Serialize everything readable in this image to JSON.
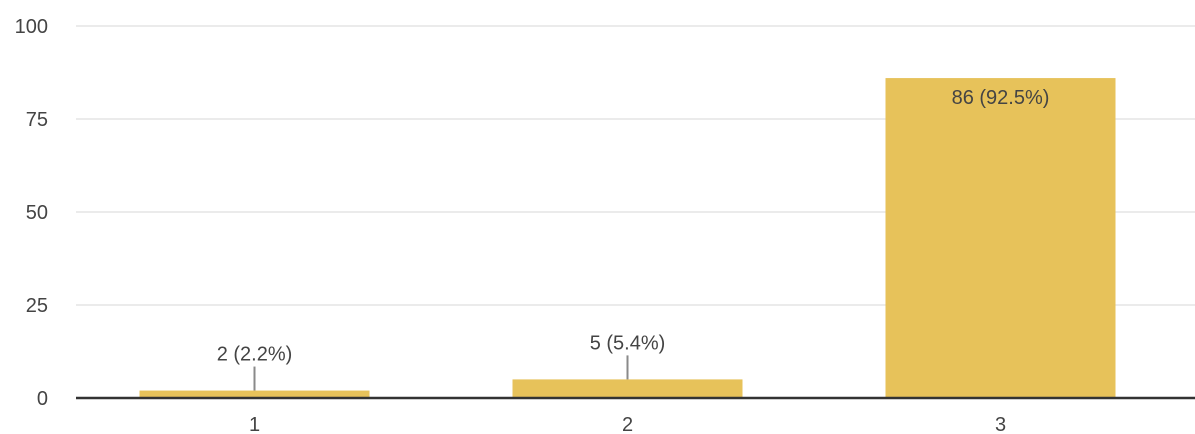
{
  "chart_data": {
    "type": "bar",
    "categories": [
      "1",
      "2",
      "3"
    ],
    "values": [
      2,
      5,
      86
    ],
    "data_labels": [
      "2 (2.2%)",
      "5 (5.4%)",
      "86 (92.5%)"
    ],
    "yticks": [
      0,
      25,
      50,
      75,
      100
    ],
    "ylim": [
      0,
      100
    ],
    "grid": true,
    "bar_color": "#e7c25a",
    "title": "",
    "xlabel": "",
    "ylabel": ""
  }
}
